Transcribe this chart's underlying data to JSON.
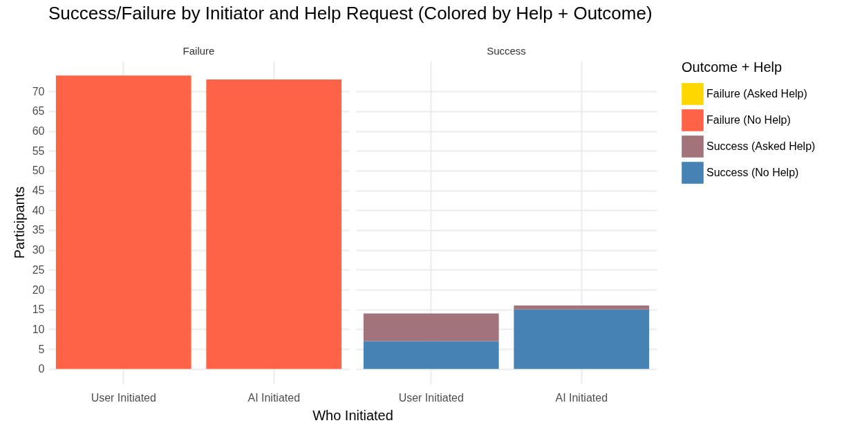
{
  "chart_data": [
    {
      "type": "bar",
      "title": "Success/Failure by Initiator and Help Request (Colored by Help + Outcome)",
      "subtitle": "Failure",
      "xlabel": "Who Initiated",
      "ylabel": "Participants",
      "categories": [
        "User Initiated",
        "AI Initiated"
      ],
      "stacked": true,
      "ylim": [
        -3.7,
        77.7
      ],
      "yticks": [
        0,
        5,
        10,
        15,
        20,
        25,
        30,
        35,
        40,
        45,
        50,
        55,
        60,
        65,
        70
      ],
      "grid": true,
      "series": [
        {
          "color": "#ff6347",
          "values": [
            74,
            73
          ]
        }
      ]
    },
    {
      "type": "bar",
      "subtitle": "Success",
      "legend_title": "Outcome + Help",
      "categories": [
        "User Initiated",
        "AI Initiated"
      ],
      "stacked": true,
      "ylim": [
        -3.7,
        77.7
      ],
      "yticks": [
        0,
        5,
        10,
        15,
        20,
        25,
        30,
        35,
        40,
        45,
        50,
        55,
        60,
        65,
        70
      ],
      "grid": true,
      "legend": "right",
      "tick_labels": "x",
      "series": [
        {
          "name": "Success (No Help)",
          "color": "#4682b4",
          "values": [
            7,
            15
          ]
        },
        {
          "name": "Success (Asked Help)",
          "color": "#a3737b",
          "values": [
            7,
            1
          ]
        },
        {
          "name": "Failure (No Help)",
          "color": "#ff6347",
          "values": [
            null,
            null
          ]
        },
        {
          "name": "Failure (Asked Help)",
          "color": "#ffd700",
          "values": [
            null,
            null
          ]
        }
      ]
    }
  ]
}
